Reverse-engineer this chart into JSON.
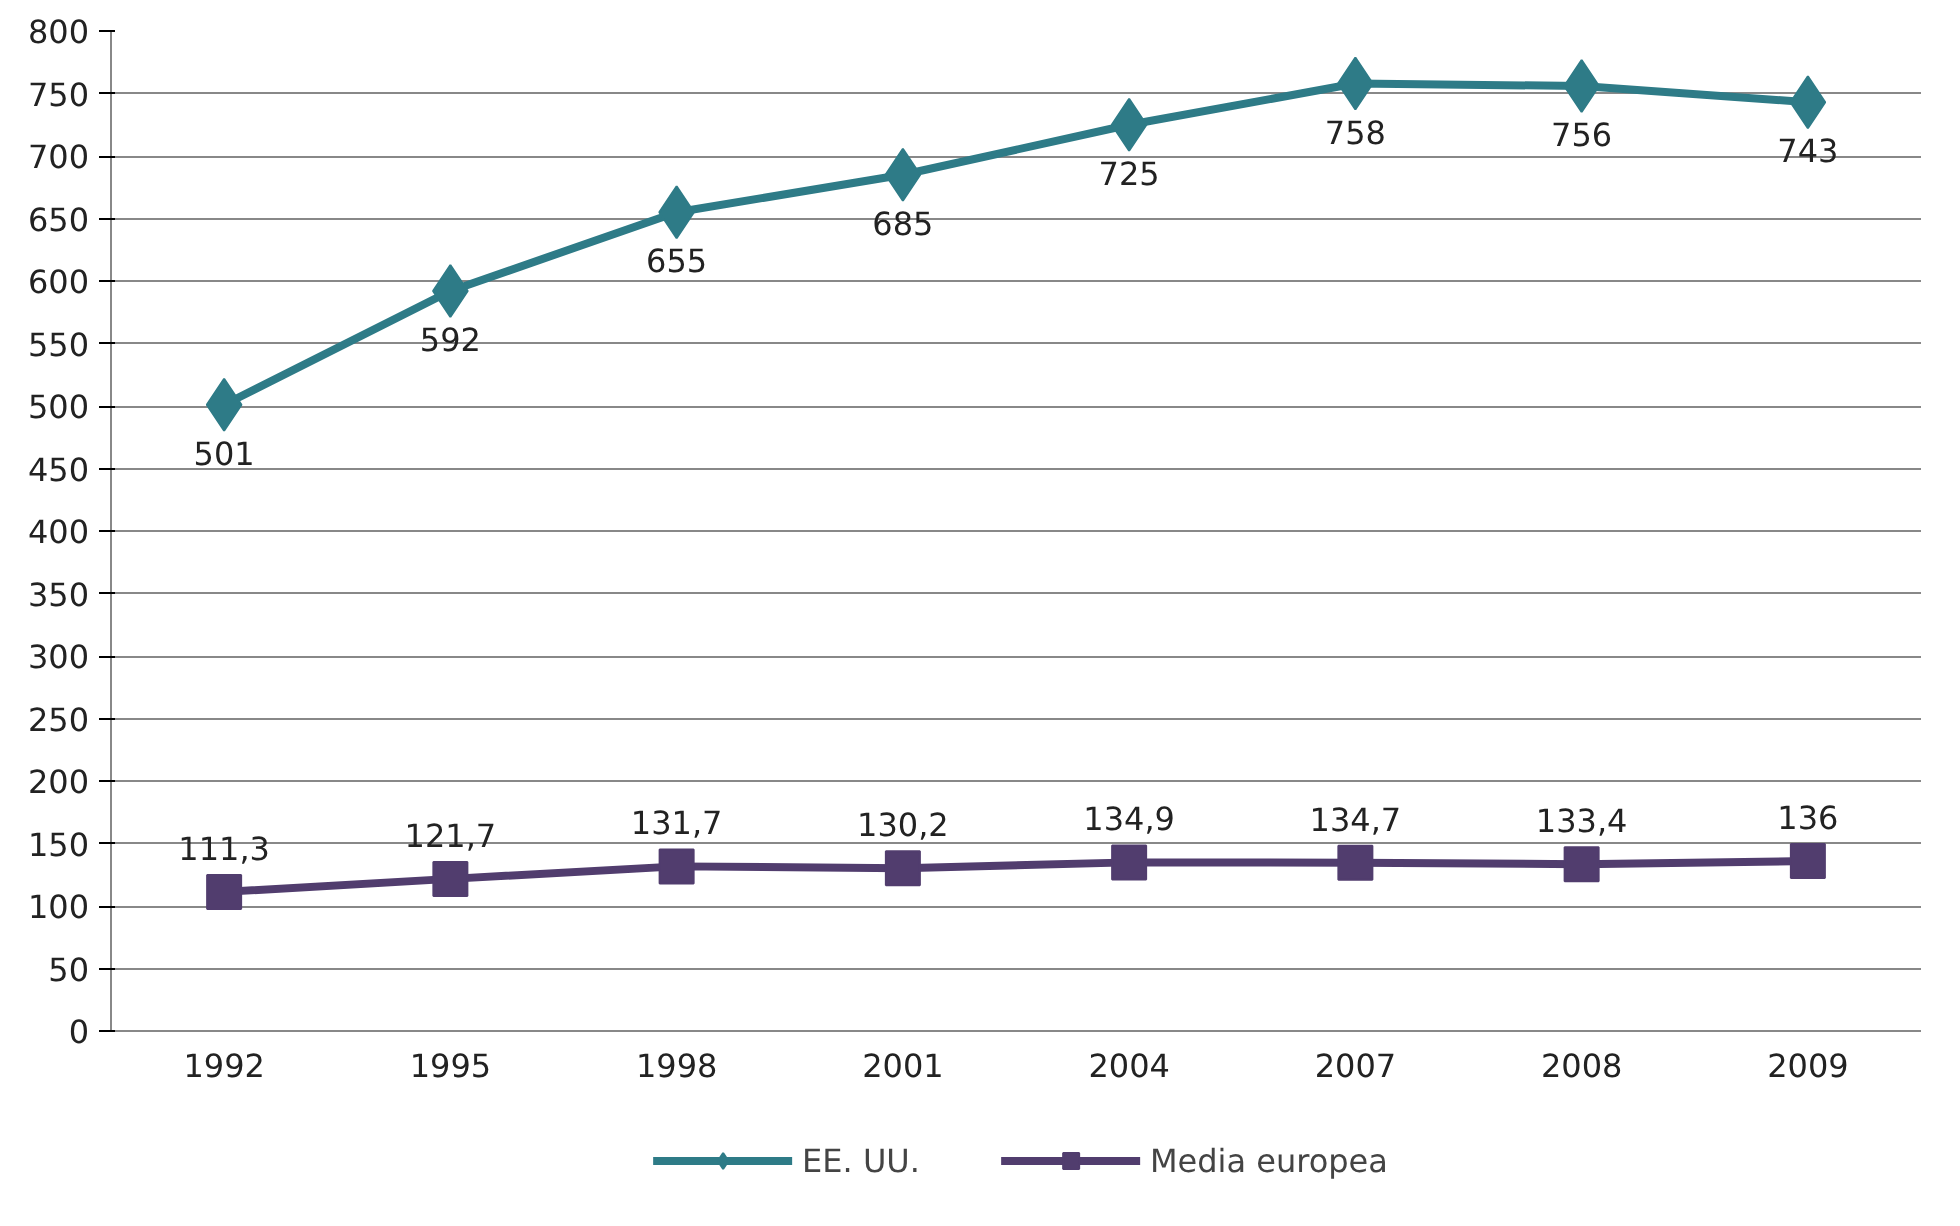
{
  "chart_data": {
    "type": "line",
    "categories": [
      "1992",
      "1995",
      "1998",
      "2001",
      "2004",
      "2007",
      "2008",
      "2009"
    ],
    "series": [
      {
        "name": "EE. UU.",
        "color": "#2e7b87",
        "marker": "diamond",
        "values": [
          501,
          592,
          655,
          685,
          725,
          758,
          756,
          743
        ],
        "value_labels": [
          "501",
          "592",
          "655",
          "685",
          "725",
          "758",
          "756",
          "743"
        ]
      },
      {
        "name": "Media europea",
        "color": "#513d6e",
        "marker": "square",
        "values": [
          111.3,
          121.7,
          131.7,
          130.2,
          134.9,
          134.7,
          133.4,
          136
        ],
        "value_labels": [
          "111,3",
          "121,7",
          "131,7",
          "130,2",
          "134,9",
          "134,7",
          "133,4",
          "136"
        ]
      }
    ],
    "ylim": [
      0,
      800
    ],
    "yticks": [
      0,
      50,
      100,
      150,
      200,
      250,
      300,
      350,
      400,
      450,
      500,
      550,
      600,
      650,
      700,
      750,
      800
    ],
    "grid": "y",
    "legend": "bottom"
  }
}
